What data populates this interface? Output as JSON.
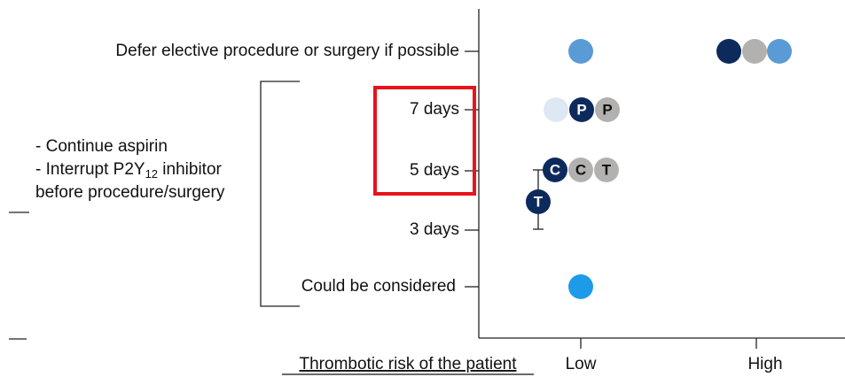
{
  "rows": [
    "Defer elective procedure or surgery if possible",
    "7 days",
    "5 days",
    "3 days",
    "Could be considered"
  ],
  "left_note": {
    "line1": "- Continue aspirin",
    "line2_prefix": "- Interrupt P2Y",
    "line2_sub": "12",
    "line2_suffix": " inhibitor",
    "line3": "before procedure/surgery"
  },
  "x_axis": {
    "title": "Thrombotic risk of the patient",
    "ticks": [
      "Low",
      "High"
    ]
  },
  "dot_letters": {
    "seven_days": [
      "P",
      "P"
    ],
    "five_days": [
      "C",
      "C",
      "T"
    ],
    "three_to_five": "T"
  }
}
